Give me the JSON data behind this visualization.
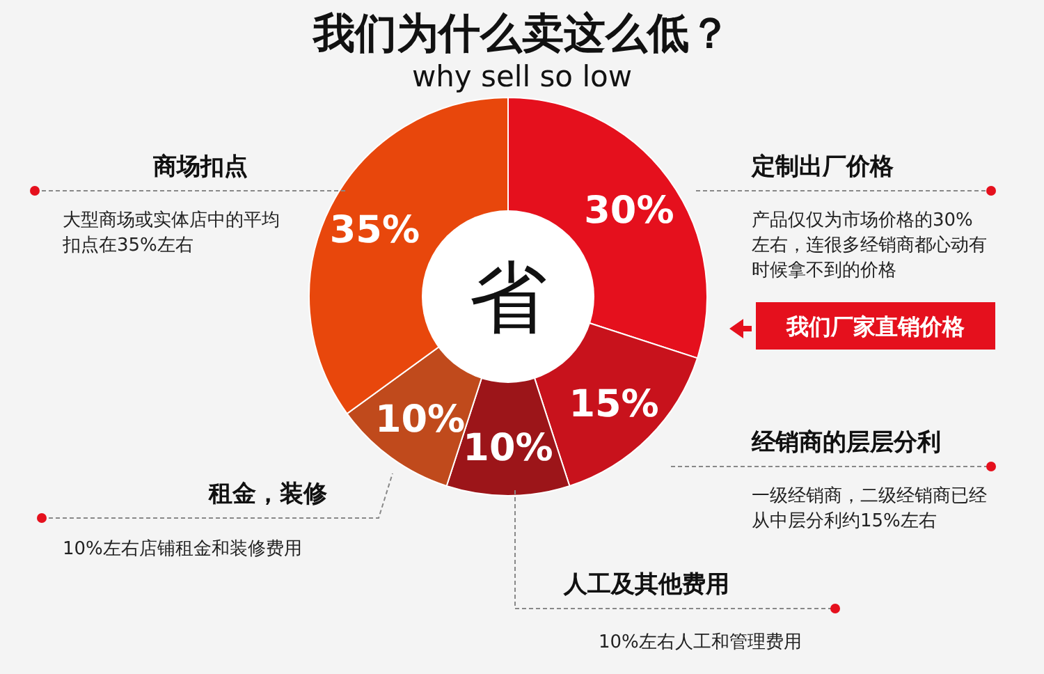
{
  "chart_data": {
    "type": "donut",
    "title": "我们为什么卖这么低？",
    "subtitle": "why sell so low",
    "categories": [
      "定制出厂价格",
      "经销商的层层分利",
      "人工及其他费用",
      "租金，装修",
      "商场扣点"
    ],
    "values": [
      30,
      15,
      10,
      10,
      35
    ],
    "colors": [
      "#e5101d",
      "#c8121c",
      "#9c1519",
      "#c04a1c",
      "#e8470c"
    ],
    "value_labels": [
      "30%",
      "15%",
      "10%",
      "10%",
      "35%"
    ],
    "annotations": [
      "产品仅仅为市场价格的30%左右，连很多经销商都心动有时候拿不到的价格",
      "一级经销商，二级经销商已经从中层分利约15%左右",
      "10%左右人工和管理费用",
      "10%左右店铺租金和装修费用",
      "大型商场或实体店中的平均扣点在35%左右",
      "我们厂家直销价格",
      "省"
    ]
  }
}
